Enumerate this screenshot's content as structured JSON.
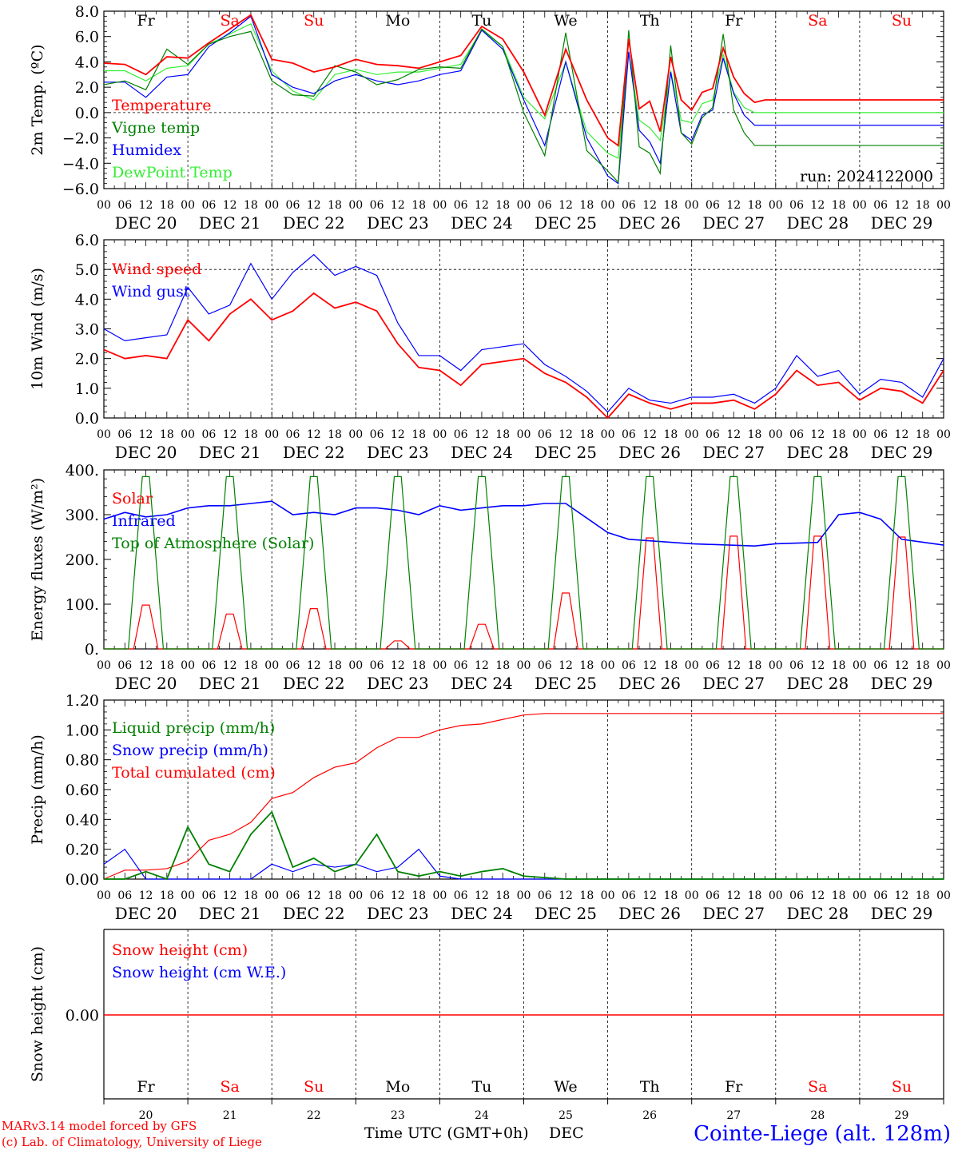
{
  "chart_data": [
    {
      "id": "temp",
      "type": "line",
      "ylabel": "2m Temp. (ºC)",
      "ylim": [
        -6,
        8
      ],
      "yticks": [
        -6,
        -4,
        -2,
        0,
        2,
        4,
        6,
        8
      ],
      "ytick_labels": [
        "−6.0",
        "−4.0",
        "−2.0",
        "0.0",
        "2.0",
        "4.0",
        "6.0",
        "8.0"
      ],
      "grid": "vertical dashed at day boundaries",
      "reference_lines": [
        0
      ],
      "legend_position": "bottom-left",
      "annotation": "run: 2024122000",
      "day_labels": [
        {
          "text": "Fr",
          "color": "#000000"
        },
        {
          "text": "Sa",
          "color": "#ff0000"
        },
        {
          "text": "Su",
          "color": "#ff0000"
        },
        {
          "text": "Mo",
          "color": "#000000"
        },
        {
          "text": "Tu",
          "color": "#000000"
        },
        {
          "text": "We",
          "color": "#000000"
        },
        {
          "text": "Th",
          "color": "#000000"
        },
        {
          "text": "Fr",
          "color": "#000000"
        },
        {
          "text": "Sa",
          "color": "#ff0000"
        },
        {
          "text": "Su",
          "color": "#ff0000"
        }
      ],
      "x_hours": [
        0,
        6,
        12,
        18,
        24,
        30,
        36,
        42,
        48,
        54,
        60,
        66,
        72,
        78,
        84,
        90,
        96,
        102,
        108,
        114,
        120,
        126,
        132,
        138,
        144,
        147,
        150,
        153,
        156,
        159,
        162,
        165,
        168,
        171,
        174,
        177,
        180,
        183,
        186,
        189,
        192,
        195,
        198,
        201,
        204,
        207,
        210,
        213,
        216,
        219,
        222,
        225,
        228,
        231,
        234,
        237,
        240
      ],
      "series": [
        {
          "name": "Temperature",
          "color": "#ff0000",
          "values": [
            3.9,
            3.8,
            3.0,
            4.4,
            4.3,
            5.5,
            6.6,
            7.7,
            4.2,
            3.9,
            3.2,
            3.6,
            4.2,
            3.8,
            3.7,
            3.5,
            4.0,
            4.5,
            6.8,
            5.8,
            3.2,
            -0.2,
            5.0,
            1.0,
            -2.0,
            -2.6,
            5.8,
            0.3,
            0.9,
            -1.5,
            4.4,
            1.0,
            0.2,
            1.6,
            1.9,
            5.1,
            2.8,
            1.5,
            0.8,
            1.0,
            1.0,
            1.0,
            1.0,
            1.0,
            1.0,
            1.0,
            1.0,
            1.0,
            1.0,
            1.0,
            1.0,
            1.0,
            1.0,
            1.0,
            1.0,
            1.0,
            1.0
          ]
        },
        {
          "name": "Vigne temp",
          "color": "#008000",
          "values": [
            2.2,
            2.5,
            1.8,
            5.0,
            3.8,
            5.4,
            6.0,
            6.4,
            2.5,
            1.4,
            1.3,
            3.7,
            3.2,
            2.2,
            2.6,
            3.4,
            3.6,
            3.5,
            6.6,
            5.2,
            0.0,
            -3.4,
            6.3,
            -3.0,
            -4.6,
            -5.5,
            6.5,
            -2.7,
            -3.2,
            -4.8,
            5.3,
            -1.6,
            -2.5,
            -0.4,
            0.4,
            6.2,
            0.2,
            -1.6,
            -2.6,
            -2.6,
            -2.6,
            -2.6,
            -2.6,
            -2.6,
            -2.6,
            -2.6,
            -2.6,
            -2.6,
            -2.6,
            -2.6,
            -2.6,
            -2.6,
            -2.6,
            -2.6,
            -2.6,
            -2.6,
            -2.6
          ]
        },
        {
          "name": "Humidex",
          "color": "#0000ff",
          "values": [
            2.4,
            2.4,
            1.2,
            2.8,
            3.0,
            5.2,
            6.3,
            7.6,
            3.0,
            2.0,
            1.5,
            2.5,
            3.0,
            2.5,
            2.2,
            2.5,
            3.0,
            3.3,
            6.5,
            5.0,
            1.0,
            -2.6,
            4.0,
            -2.0,
            -5.0,
            -5.6,
            4.8,
            -1.4,
            -2.3,
            -4.0,
            3.2,
            -1.6,
            -2.2,
            -0.2,
            0.2,
            4.3,
            1.5,
            -0.2,
            -1.0,
            -1.0,
            -1.0,
            -1.0,
            -1.0,
            -1.0,
            -1.0,
            -1.0,
            -1.0,
            -1.0,
            -1.0,
            -1.0,
            -1.0,
            -1.0,
            -1.0,
            -1.0,
            -1.0,
            -1.0,
            -1.0
          ]
        },
        {
          "name": "DewPoint Temp",
          "color": "#33ee33",
          "values": [
            3.3,
            3.3,
            2.5,
            3.5,
            3.7,
            5.4,
            6.2,
            7.0,
            3.3,
            1.7,
            1.0,
            3.0,
            3.4,
            3.0,
            3.2,
            3.2,
            3.5,
            3.8,
            6.5,
            5.2,
            1.2,
            -0.5,
            4.0,
            -1.5,
            -3.2,
            -3.6,
            4.8,
            -0.6,
            -1.2,
            -2.2,
            3.3,
            -0.6,
            -0.8,
            0.7,
            1.0,
            4.6,
            1.6,
            0.4,
            0.0,
            0.0,
            0.0,
            0.0,
            0.0,
            0.0,
            0.0,
            0.0,
            0.0,
            0.0,
            0.0,
            0.0,
            0.0,
            0.0,
            0.0,
            0.0,
            0.0,
            0.0,
            0.0
          ]
        }
      ]
    },
    {
      "id": "wind",
      "type": "line",
      "ylabel": "10m Wind (m/s)",
      "ylim": [
        0,
        6
      ],
      "yticks": [
        0,
        1,
        2,
        3,
        4,
        5,
        6
      ],
      "ytick_labels": [
        "0.0",
        "1.0",
        "2.0",
        "3.0",
        "4.0",
        "5.0",
        "6.0"
      ],
      "reference_lines": [
        5
      ],
      "legend_position": "top-left",
      "x_hours": [
        0,
        6,
        12,
        18,
        24,
        30,
        36,
        42,
        48,
        54,
        60,
        66,
        72,
        78,
        84,
        90,
        96,
        102,
        108,
        114,
        120,
        126,
        132,
        138,
        144,
        150,
        156,
        162,
        168,
        174,
        180,
        186,
        192,
        198,
        204,
        210,
        216,
        222,
        228,
        234,
        240
      ],
      "series": [
        {
          "name": "Wind speed",
          "color": "#ff0000",
          "values": [
            2.3,
            2.0,
            2.1,
            2.0,
            3.3,
            2.6,
            3.5,
            4.0,
            3.3,
            3.6,
            4.2,
            3.7,
            3.9,
            3.6,
            2.5,
            1.7,
            1.6,
            1.1,
            1.8,
            1.9,
            2.0,
            1.5,
            1.2,
            0.7,
            0.0,
            0.8,
            0.5,
            0.3,
            0.5,
            0.5,
            0.6,
            0.3,
            0.8,
            1.6,
            1.1,
            1.2,
            0.6,
            1.0,
            0.9,
            0.5,
            1.6
          ]
        },
        {
          "name": "Wind gust",
          "color": "#0000ff",
          "values": [
            3.0,
            2.6,
            2.7,
            2.8,
            4.4,
            3.5,
            3.8,
            5.2,
            4.0,
            4.9,
            5.5,
            4.8,
            5.1,
            4.8,
            3.2,
            2.1,
            2.1,
            1.6,
            2.3,
            2.4,
            2.5,
            1.8,
            1.4,
            0.9,
            0.2,
            1.0,
            0.6,
            0.5,
            0.7,
            0.7,
            0.8,
            0.5,
            1.0,
            2.1,
            1.4,
            1.6,
            0.8,
            1.3,
            1.2,
            0.7,
            2.0
          ]
        }
      ]
    },
    {
      "id": "flux",
      "type": "line",
      "ylabel": "Energy fluxes (W/m²)",
      "ylim": [
        0,
        400
      ],
      "yticks": [
        0,
        100,
        200,
        300,
        400
      ],
      "ytick_labels": [
        "0.",
        "100.",
        "200.",
        "300.",
        "400."
      ],
      "legend_position": "top-left",
      "series": [
        {
          "name": "Solar",
          "color": "#ff0000",
          "daily_peak": [
            98,
            78,
            90,
            18,
            55,
            125,
            248,
            252,
            252,
            250
          ],
          "peak_hour": 12
        },
        {
          "name": "Infrared",
          "color": "#0000ff",
          "x_hours": [
            0,
            6,
            12,
            18,
            24,
            30,
            36,
            42,
            48,
            54,
            60,
            66,
            72,
            78,
            84,
            90,
            96,
            102,
            108,
            114,
            120,
            126,
            132,
            144,
            150,
            168,
            186,
            192,
            204,
            210,
            216,
            222,
            228,
            240
          ],
          "values": [
            290,
            305,
            295,
            300,
            315,
            320,
            320,
            325,
            330,
            300,
            305,
            300,
            315,
            315,
            310,
            300,
            320,
            310,
            315,
            320,
            320,
            325,
            325,
            260,
            245,
            235,
            230,
            235,
            238,
            300,
            305,
            290,
            245,
            232
          ]
        },
        {
          "name": "Top of Atmosphere (Solar)",
          "color": "#008000",
          "daily_peak": [
            385,
            385,
            385,
            385,
            385,
            385,
            385,
            385,
            385,
            385
          ],
          "peak_hour": 12
        }
      ]
    },
    {
      "id": "precip",
      "type": "line",
      "ylabel": "Precip (mm/h)",
      "ylim": [
        0,
        1.2
      ],
      "yticks": [
        0,
        0.2,
        0.4,
        0.6,
        0.8,
        1.0,
        1.2
      ],
      "ytick_labels": [
        "0.00",
        "0.20",
        "0.40",
        "0.60",
        "0.80",
        "1.00",
        "1.20"
      ],
      "legend_position": "top-left",
      "x_hours": [
        0,
        6,
        12,
        18,
        24,
        30,
        36,
        42,
        48,
        54,
        60,
        66,
        72,
        78,
        84,
        90,
        96,
        102,
        108,
        114,
        120,
        126,
        132,
        144,
        240
      ],
      "series": [
        {
          "name": "Liquid precip (mm/h)",
          "color": "#008000",
          "values": [
            0.0,
            0.0,
            0.05,
            0.0,
            0.35,
            0.1,
            0.05,
            0.3,
            0.45,
            0.08,
            0.14,
            0.05,
            0.1,
            0.3,
            0.05,
            0.02,
            0.05,
            0.02,
            0.05,
            0.07,
            0.02,
            0.01,
            0.0,
            0.0,
            0.0
          ]
        },
        {
          "name": "Snow precip (mm/h)",
          "color": "#0000ff",
          "values": [
            0.1,
            0.2,
            0.0,
            0.0,
            0.0,
            0.0,
            0.0,
            0.0,
            0.1,
            0.05,
            0.1,
            0.08,
            0.1,
            0.05,
            0.08,
            0.2,
            0.02,
            0.0,
            0.0,
            0.0,
            0.0,
            0.0,
            0.0,
            0.0,
            0.0
          ]
        },
        {
          "name": "Total cumulated (cm)",
          "color": "#ff0000",
          "values": [
            0.0,
            0.06,
            0.06,
            0.07,
            0.12,
            0.26,
            0.3,
            0.38,
            0.54,
            0.58,
            0.68,
            0.75,
            0.78,
            0.88,
            0.95,
            0.95,
            1.0,
            1.03,
            1.04,
            1.07,
            1.1,
            1.11,
            1.11,
            1.11,
            1.11
          ]
        }
      ]
    },
    {
      "id": "snow",
      "type": "line",
      "ylabel": "Snow height (cm)",
      "ytick_labels": [
        "0.00"
      ],
      "legend_position": "top-left",
      "series": [
        {
          "name": "Snow height (cm)",
          "color": "#ff0000",
          "values": [
            0,
            0
          ]
        },
        {
          "name": "Snow height (cm W.E.)",
          "color": "#0000ff",
          "values": []
        }
      ]
    }
  ],
  "x_axis": {
    "hour_ticks": [
      "00",
      "06",
      "12",
      "18"
    ],
    "dates": [
      "DEC 20",
      "DEC 21",
      "DEC 22",
      "DEC 23",
      "DEC 24",
      "DEC 25",
      "DEC 26",
      "DEC 27",
      "DEC 28",
      "DEC 29"
    ],
    "bottom_days": [
      {
        "day": "Fr",
        "num": "20",
        "color": "#000000"
      },
      {
        "day": "Sa",
        "num": "21",
        "color": "#ff0000"
      },
      {
        "day": "Su",
        "num": "22",
        "color": "#ff0000"
      },
      {
        "day": "Mo",
        "num": "23",
        "color": "#000000"
      },
      {
        "day": "Tu",
        "num": "24",
        "color": "#000000"
      },
      {
        "day": "We",
        "num": "25",
        "color": "#000000"
      },
      {
        "day": "Th",
        "num": "26",
        "color": "#000000"
      },
      {
        "day": "Fr",
        "num": "27",
        "color": "#000000"
      },
      {
        "day": "Sa",
        "num": "28",
        "color": "#ff0000"
      },
      {
        "day": "Su",
        "num": "29",
        "color": "#ff0000"
      }
    ],
    "xlabel": "Time UTC (GMT+0h)",
    "month": "DEC"
  },
  "footer": {
    "credit_line1": "MARv3.14 model forced by GFS",
    "credit_line2": "(c) Lab. of Climatology, University of Liege",
    "station": "Cointe-Liege (alt. 128m)",
    "credit_color": "#ff0000",
    "station_color": "#0000ff"
  }
}
